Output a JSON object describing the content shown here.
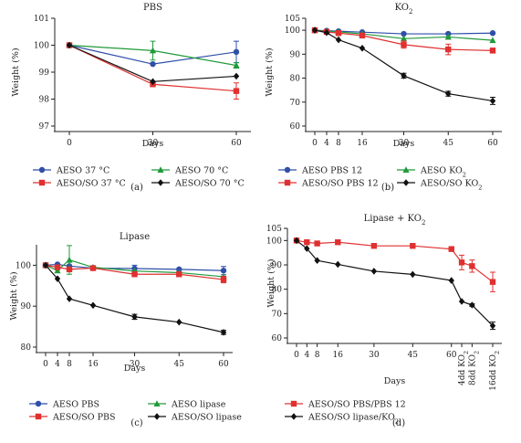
{
  "figure": {
    "panels": [
      {
        "id": "a",
        "caption": "(a)"
      },
      {
        "id": "b",
        "caption": "(b)"
      },
      {
        "id": "c",
        "caption": "(c)"
      },
      {
        "id": "d",
        "caption": "(d)"
      }
    ]
  },
  "chart_data": [
    {
      "id": "a",
      "type": "line",
      "title": "PBS",
      "xlabel": "Days",
      "ylabel": "Weight (%)",
      "x_ticks": [
        0,
        30,
        60
      ],
      "x_tick_labels": [
        "0",
        "30",
        "60"
      ],
      "ylim": [
        97,
        101
      ],
      "y_ticks": [
        97,
        98,
        99,
        100,
        101
      ],
      "legend": "bottom",
      "series": [
        {
          "name": "AESO 37 °C",
          "color": "#2f4fa8",
          "marker": "circle",
          "x": [
            0,
            30,
            60
          ],
          "values": [
            100,
            99.3,
            99.75
          ],
          "err": [
            0,
            0,
            0.4
          ]
        },
        {
          "name": "AESO 70 °C",
          "color": "#1f9a3a",
          "marker": "triangle",
          "x": [
            0,
            30,
            60
          ],
          "values": [
            100,
            99.8,
            99.25
          ],
          "err": [
            0,
            0.35,
            0.1
          ]
        },
        {
          "name": "AESO/SO 37 °C",
          "color": "#e03030",
          "marker": "square",
          "x": [
            0,
            30,
            60
          ],
          "values": [
            100,
            98.55,
            98.3
          ],
          "err": [
            0,
            0.05,
            0.3
          ]
        },
        {
          "name": "AESO/SO 70 °C",
          "color": "#111111",
          "marker": "diamond",
          "x": [
            0,
            30,
            60
          ],
          "values": [
            100,
            98.65,
            98.85
          ],
          "err": [
            0,
            0,
            0
          ]
        }
      ]
    },
    {
      "id": "b",
      "type": "line",
      "title": "KO",
      "title_sub": "2",
      "xlabel": "Days",
      "ylabel": "Weight (%)",
      "x_ticks": [
        0,
        4,
        8,
        16,
        30,
        45,
        60
      ],
      "x_tick_labels": [
        "0",
        "4",
        "8",
        "16",
        "30",
        "45",
        "60"
      ],
      "ylim": [
        60,
        105
      ],
      "y_ticks": [
        60,
        70,
        80,
        90,
        100,
        105
      ],
      "legend": "bottom",
      "series": [
        {
          "name": "AESO PBS 12",
          "color": "#2f4fa8",
          "marker": "circle",
          "x": [
            0,
            4,
            8,
            16,
            30,
            45,
            60
          ],
          "values": [
            100,
            99.8,
            99.6,
            99.2,
            98.5,
            98.5,
            98.8
          ],
          "err": [
            0,
            0,
            0,
            0,
            0,
            0,
            0
          ]
        },
        {
          "name": "AESO KO",
          "name_sub": "2",
          "color": "#1f9a3a",
          "marker": "triangle",
          "x": [
            0,
            4,
            8,
            16,
            30,
            45,
            60
          ],
          "values": [
            100,
            99.6,
            99.3,
            98.5,
            96.5,
            97.2,
            95.8
          ],
          "err": [
            0,
            0,
            0,
            0,
            0,
            0,
            0
          ]
        },
        {
          "name": "AESO/SO PBS 12",
          "color": "#e03030",
          "marker": "square",
          "x": [
            0,
            4,
            8,
            16,
            30,
            45,
            60
          ],
          "values": [
            100,
            99.3,
            98.8,
            97.8,
            94.0,
            92.0,
            91.5
          ],
          "err": [
            0,
            0,
            0,
            0,
            1.5,
            2.2,
            1.0
          ]
        },
        {
          "name": "AESO/SO KO",
          "name_sub": "2",
          "color": "#111111",
          "marker": "diamond",
          "x": [
            0,
            4,
            8,
            16,
            30,
            45,
            60
          ],
          "values": [
            100,
            99.0,
            96.0,
            92.5,
            81.0,
            73.5,
            70.5
          ],
          "err": [
            0,
            0,
            0,
            0,
            1.0,
            1.0,
            1.5
          ]
        }
      ]
    },
    {
      "id": "c",
      "type": "line",
      "title": "Lipase",
      "xlabel": "Days",
      "ylabel": "Weight (%)",
      "x_ticks": [
        0,
        4,
        8,
        16,
        30,
        45,
        60
      ],
      "x_tick_labels": [
        "0",
        "4",
        "8",
        "16",
        "30",
        "45",
        "60"
      ],
      "ylim": [
        80,
        105
      ],
      "y_ticks": [
        80,
        90,
        100
      ],
      "legend": "bottom",
      "series": [
        {
          "name": "AESO PBS",
          "color": "#2f4fa8",
          "marker": "circle",
          "x": [
            0,
            4,
            8,
            16,
            30,
            45,
            60
          ],
          "values": [
            100,
            100.2,
            99.8,
            99.3,
            99.2,
            99.0,
            98.7
          ],
          "err": [
            0,
            0,
            0,
            0,
            0.8,
            0,
            1.0
          ]
        },
        {
          "name": "AESO lipase",
          "color": "#1f9a3a",
          "marker": "triangle",
          "x": [
            0,
            4,
            8,
            16,
            30,
            45,
            60
          ],
          "values": [
            100,
            98.7,
            101.3,
            99.5,
            98.6,
            98.2,
            97.2
          ],
          "err": [
            0,
            0,
            3.5,
            0,
            0,
            0,
            0
          ]
        },
        {
          "name": "AESO/SO PBS",
          "color": "#e03030",
          "marker": "square",
          "x": [
            0,
            4,
            8,
            16,
            30,
            45,
            60
          ],
          "values": [
            100,
            99.5,
            99.0,
            99.3,
            97.8,
            97.8,
            96.5
          ],
          "err": [
            0,
            0,
            0,
            0,
            0,
            0,
            0.8
          ]
        },
        {
          "name": "AESO/SO lipase",
          "color": "#111111",
          "marker": "diamond",
          "x": [
            0,
            4,
            8,
            16,
            30,
            45,
            60
          ],
          "values": [
            100,
            96.7,
            91.8,
            90.2,
            87.4,
            86.1,
            83.6
          ],
          "err": [
            0,
            0,
            0,
            0,
            0.6,
            0,
            0.5
          ]
        }
      ]
    },
    {
      "id": "d",
      "type": "line",
      "title": "Lipase + KO",
      "title_sub": "2",
      "xlabel": "Days",
      "ylabel": "Weight (%)",
      "x_ticks": [
        0,
        4,
        8,
        16,
        30,
        45,
        60,
        64,
        68,
        76
      ],
      "x_tick_labels": [
        "0",
        "4",
        "8",
        "16",
        "30",
        "45",
        "60",
        "4dd KO",
        "8dd KO",
        "16dd KO"
      ],
      "x_tick_subs": [
        "",
        "",
        "",
        "",
        "",
        "",
        "",
        "2",
        "2",
        "2"
      ],
      "ylim": [
        60,
        105
      ],
      "y_ticks": [
        60,
        70,
        80,
        90,
        100,
        105
      ],
      "legend": "bottom",
      "series": [
        {
          "name": "AESO/SO PBS/PBS 12",
          "color": "#e03030",
          "marker": "square",
          "x": [
            0,
            4,
            8,
            16,
            30,
            45,
            60,
            64,
            68,
            76
          ],
          "values": [
            100,
            99.3,
            98.8,
            99.3,
            97.8,
            97.8,
            96.5,
            91.0,
            89.5,
            83.0
          ],
          "err": [
            0,
            0,
            0,
            0,
            0,
            0,
            0,
            3.0,
            2.5,
            4.0
          ]
        },
        {
          "name": "AESO/SO lipase/KO",
          "name_sub": "2",
          "color": "#111111",
          "marker": "diamond",
          "x": [
            0,
            4,
            8,
            16,
            30,
            45,
            60,
            64,
            68,
            76
          ],
          "values": [
            100,
            96.7,
            91.8,
            90.2,
            87.4,
            86.1,
            83.6,
            75.0,
            73.5,
            65.0
          ],
          "err": [
            0,
            0,
            0,
            0,
            0,
            0,
            0,
            0,
            0.5,
            1.5
          ]
        }
      ]
    }
  ]
}
